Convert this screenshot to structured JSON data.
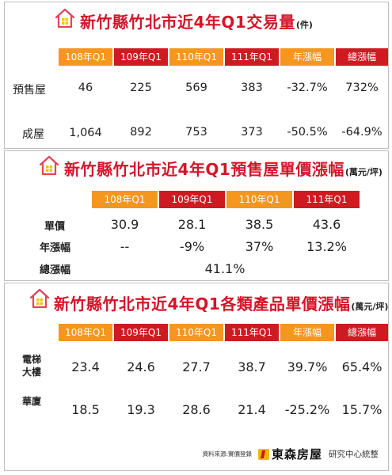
{
  "panel1": {
    "title": "新竹縣竹北市近4年Q1交易量",
    "unit": "(件)",
    "headers": [
      "108年Q1",
      "109年Q1",
      "110年Q1",
      "111年Q1",
      "年漲幅",
      "總漲幅"
    ],
    "rows": [
      {
        "label": "預售屋",
        "values": [
          "46",
          "225",
          "569",
          "383",
          "-32.7%",
          "732%"
        ]
      },
      {
        "label": "成屋",
        "values": [
          "1,064",
          "892",
          "753",
          "373",
          "-50.5%",
          "-64.9%"
        ]
      }
    ]
  },
  "panel2": {
    "title": "新竹縣竹北市近4年Q1預售屋單價漲幅",
    "unit": "(萬元/坪)",
    "headers": [
      "108年Q1",
      "109年Q1",
      "110年Q1",
      "111年Q1"
    ],
    "rows": [
      {
        "label": "單價",
        "values": [
          "30.9",
          "28.1",
          "38.5",
          "43.6"
        ]
      },
      {
        "label": "年漲幅",
        "values": [
          "--",
          "-9%",
          "37%",
          "13.2%"
        ]
      }
    ],
    "total_label": "總漲幅",
    "total_value": "41.1%"
  },
  "panel3": {
    "title": "新竹縣竹北市近4年Q1各類產品單價漲幅",
    "unit": "(萬元/坪)",
    "headers": [
      "108年Q1",
      "109年Q1",
      "110年Q1",
      "111年Q1",
      "年漲幅",
      "總漲幅"
    ],
    "rows": [
      {
        "label_line1": "電梯",
        "label_line2": "大樓",
        "values": [
          "23.4",
          "24.6",
          "27.7",
          "38.7",
          "39.7%",
          "65.4%"
        ]
      },
      {
        "label_line1": "華廈",
        "label_line2": "",
        "values": [
          "18.5",
          "19.3",
          "28.6",
          "21.4",
          "-25.2%",
          "15.7%"
        ]
      }
    ]
  },
  "footer": {
    "source": "資料來源:實價登錄",
    "brand": "東森房屋",
    "note": "研究中心統整"
  },
  "colors": {
    "title_red": "#d4152a",
    "header_orange": "#f5961e",
    "header_red": "#cf1a21",
    "icon_yellow": "#f2c318"
  }
}
